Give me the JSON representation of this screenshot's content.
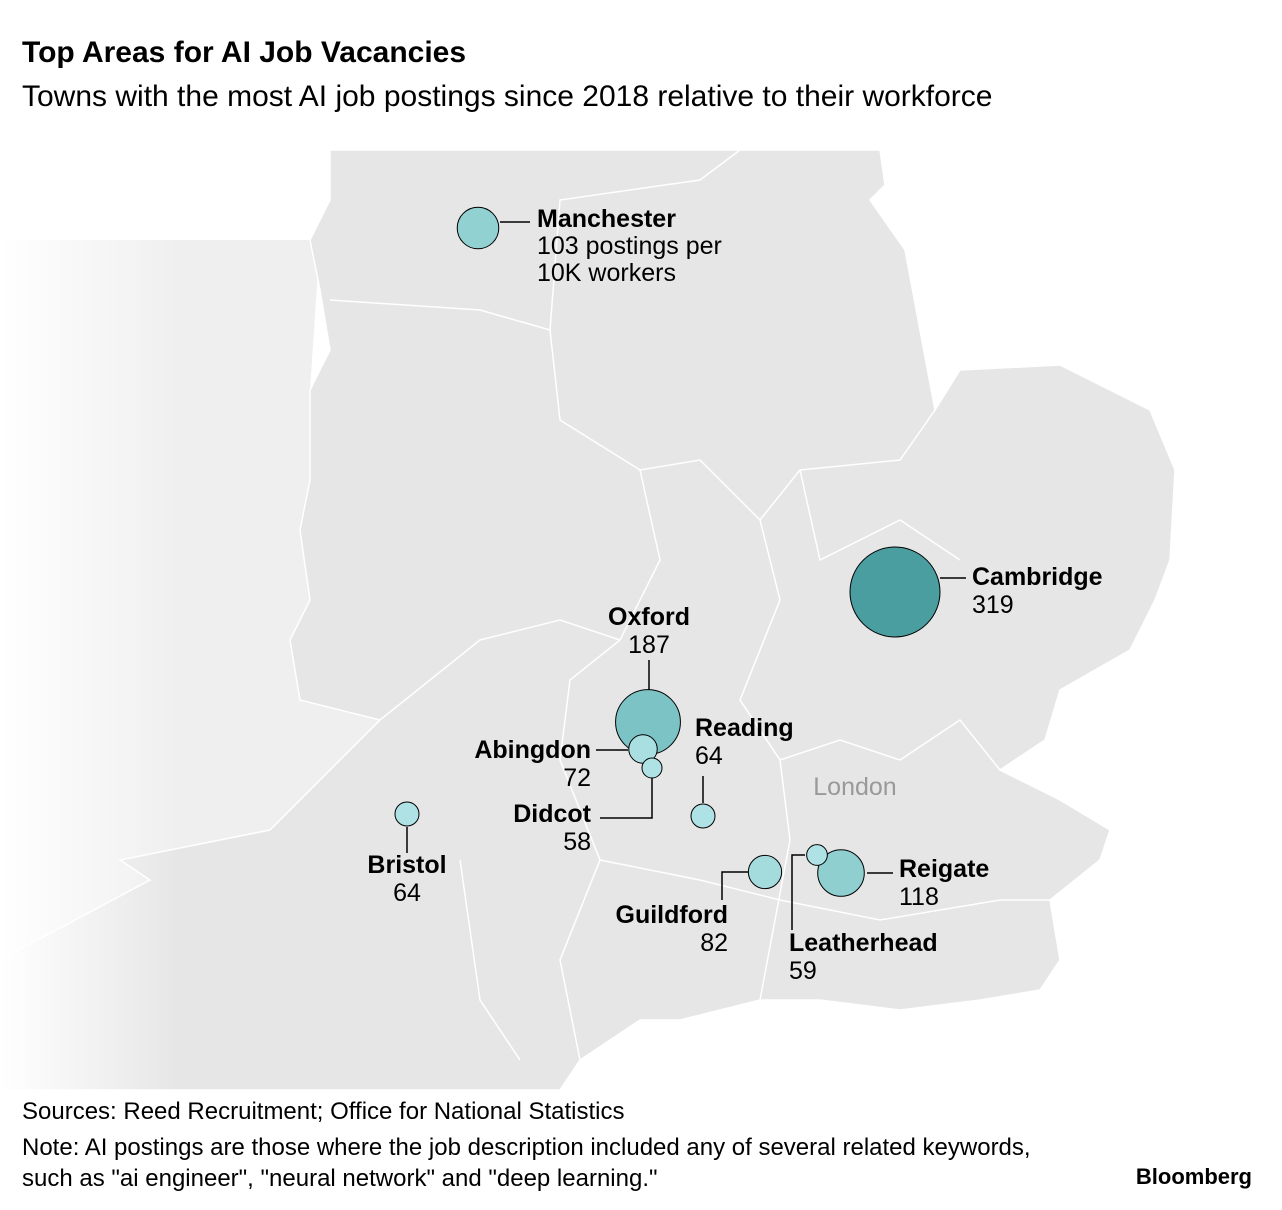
{
  "chart_data": {
    "type": "bubble-map",
    "title": "Top Areas for AI Job Vacancies",
    "subtitle": "Towns with the most AI job postings since 2018 relative to their workforce",
    "map_label": "London",
    "cities": [
      {
        "name": "Manchester",
        "value": 103,
        "value_label": "103 postings per 10K workers",
        "color": "#91d1d2"
      },
      {
        "name": "Cambridge",
        "value": 319,
        "color": "#4a9ea0"
      },
      {
        "name": "Oxford",
        "value": 187,
        "color": "#7cc3c5"
      },
      {
        "name": "Abingdon",
        "value": 72,
        "color": "#a9dfe1"
      },
      {
        "name": "Didcot",
        "value": 58,
        "color": "#aee2e4"
      },
      {
        "name": "Reading",
        "value": 64,
        "color": "#aee2e4"
      },
      {
        "name": "Bristol",
        "value": 64,
        "color": "#aee2e4"
      },
      {
        "name": "Guildford",
        "value": 82,
        "color": "#a4dcde"
      },
      {
        "name": "Leatherhead",
        "value": 59,
        "color": "#aee2e4"
      },
      {
        "name": "Reigate",
        "value": 118,
        "color": "#8fcfd0"
      }
    ],
    "sources": "Sources: Reed Recruitment; Office for National Statistics",
    "note": "Note: AI postings are those where the job description included any of several related keywords, such as \"ai engineer\", \"neural network\" and \"deep learning.\"",
    "brand": "Bloomberg"
  }
}
